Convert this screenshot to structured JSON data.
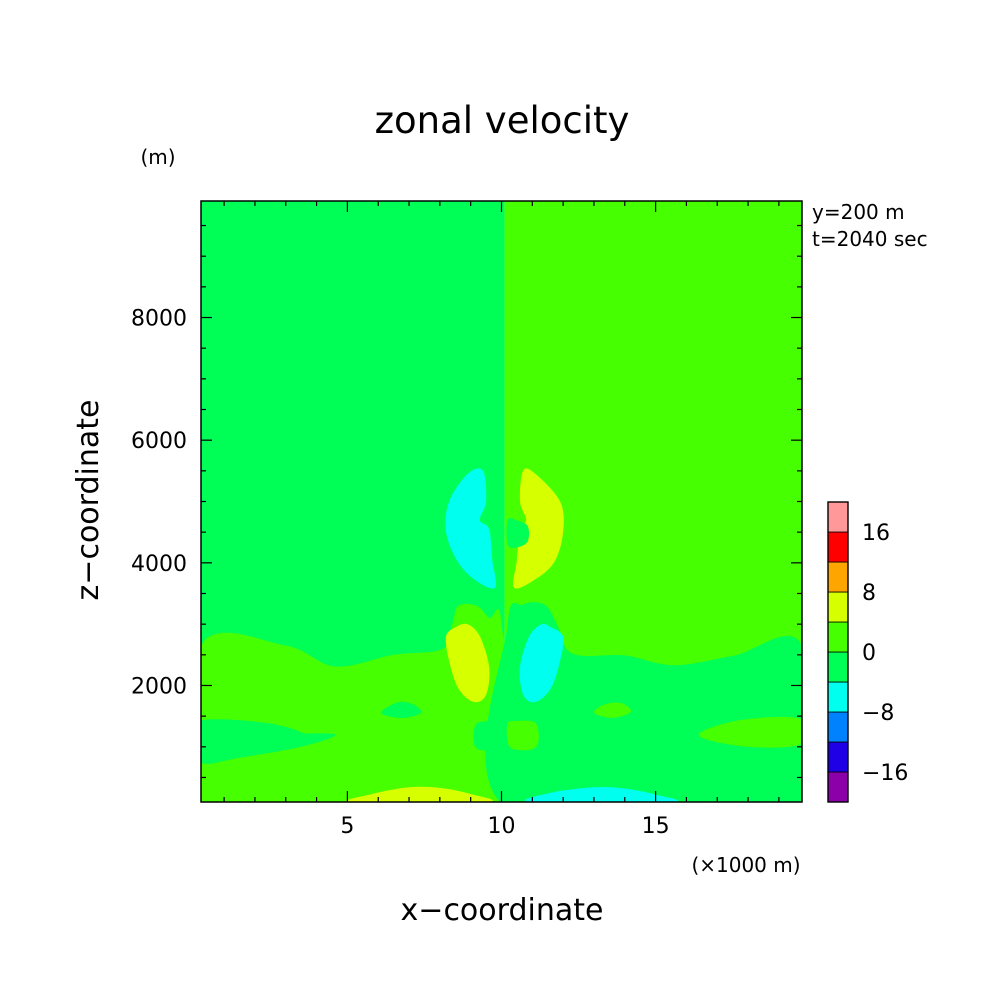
{
  "chart_data": {
    "type": "heatmap",
    "title": "zonal velocity",
    "xlabel": "x−coordinate",
    "ylabel": "z−coordinate",
    "x_unit": "(×1000 m)",
    "y_unit": "(m)",
    "annotations": [
      "y=200 m",
      "t=2040 sec"
    ],
    "xlim": [
      0.25,
      19.75
    ],
    "ylim": [
      100,
      9900
    ],
    "x_ticks": [
      5,
      10,
      15
    ],
    "y_ticks": [
      2000,
      4000,
      6000,
      8000
    ],
    "x_tick_labels": [
      "5",
      "10",
      "15"
    ],
    "y_tick_labels": [
      "2000",
      "4000",
      "6000",
      "8000"
    ],
    "colorbar": {
      "levels": [
        -20,
        -16,
        -12,
        -8,
        -4,
        0,
        4,
        8,
        12,
        16,
        20
      ],
      "tick_labels": [
        "16",
        "8",
        "0",
        "−8",
        "−16"
      ],
      "colors": [
        "#8b00a8",
        "#1f00e6",
        "#0082ff",
        "#00ffee",
        "#00ff56",
        "#46ff00",
        "#d6ff00",
        "#ffa500",
        "#ff0000",
        "#ff9999"
      ]
    },
    "background": {
      "west_value": -2,
      "east_value": 2,
      "west_color": "#00ff56",
      "east_color": "#46ff00"
    },
    "regions": [
      {
        "value": 2,
        "color": "#46ff00",
        "points": [
          [
            0.25,
            2650
          ],
          [
            3,
            2650
          ],
          [
            4.6,
            2310
          ],
          [
            6.5,
            2500
          ],
          [
            8.1,
            2600
          ],
          [
            8.4,
            3000
          ],
          [
            8.6,
            3300
          ],
          [
            9.2,
            3300
          ],
          [
            9.6,
            3100
          ],
          [
            10,
            3000
          ],
          [
            10,
            0
          ],
          [
            0.25,
            0
          ]
        ]
      },
      {
        "value": -2,
        "color": "#00ff56",
        "points": [
          [
            10.2,
            3000
          ],
          [
            10.7,
            3320
          ],
          [
            11.4,
            3320
          ],
          [
            11.8,
            3000
          ],
          [
            12.3,
            2520
          ],
          [
            14,
            2490
          ],
          [
            15.6,
            2330
          ],
          [
            17.5,
            2480
          ],
          [
            19.75,
            2650
          ],
          [
            19.75,
            0
          ],
          [
            10.2,
            0
          ]
        ]
      },
      {
        "value": -2,
        "color": "#00ff56",
        "points": [
          [
            0.25,
            1300
          ],
          [
            2,
            1200
          ],
          [
            4,
            1220
          ],
          [
            4.6,
            1180
          ],
          [
            3.5,
            1000
          ],
          [
            1.5,
            820
          ],
          [
            0.25,
            750
          ]
        ]
      },
      {
        "value": -2,
        "color": "#00ff56",
        "points": [
          [
            0.25,
            1430
          ],
          [
            2.5,
            1380
          ],
          [
            3.7,
            1160
          ],
          [
            2.3,
            1040
          ],
          [
            0.25,
            1080
          ]
        ]
      },
      {
        "value": 2,
        "color": "#46ff00",
        "points": [
          [
            19.75,
            1450
          ],
          [
            17.8,
            1440
          ],
          [
            16.4,
            1190
          ],
          [
            18,
            1000
          ],
          [
            19.75,
            1050
          ]
        ]
      },
      {
        "value": -2,
        "color": "#00ff56",
        "points": [
          [
            6.1,
            1550
          ],
          [
            6.6,
            1720
          ],
          [
            7.1,
            1700
          ],
          [
            7.4,
            1560
          ],
          [
            6.8,
            1470
          ]
        ]
      },
      {
        "value": 2,
        "color": "#46ff00",
        "points": [
          [
            13.0,
            1560
          ],
          [
            13.4,
            1700
          ],
          [
            13.9,
            1710
          ],
          [
            14.2,
            1570
          ],
          [
            13.6,
            1470
          ]
        ]
      },
      {
        "value": -2,
        "color": "#00ff56",
        "points": [
          [
            9.2,
            1380
          ],
          [
            9.1,
            1080
          ],
          [
            9.3,
            950
          ],
          [
            9.9,
            960
          ],
          [
            10.2,
            1080
          ],
          [
            10.2,
            1380
          ],
          [
            9.8,
            1410
          ]
        ]
      },
      {
        "value": 2,
        "color": "#46ff00",
        "points": [
          [
            10.2,
            1380
          ],
          [
            10.2,
            1080
          ],
          [
            10.4,
            960
          ],
          [
            11.0,
            960
          ],
          [
            11.2,
            1100
          ],
          [
            11.1,
            1390
          ],
          [
            10.5,
            1420
          ]
        ]
      },
      {
        "value": 6,
        "color": "#d6ff00",
        "points": [
          [
            5.2,
            100
          ],
          [
            5.8,
            230
          ],
          [
            7.0,
            340
          ],
          [
            8.0,
            330
          ],
          [
            9.0,
            230
          ],
          [
            9.5,
            100
          ]
        ]
      },
      {
        "value": -6,
        "color": "#00ffee",
        "points": [
          [
            11.0,
            100
          ],
          [
            11.6,
            250
          ],
          [
            13.0,
            340
          ],
          [
            14.0,
            320
          ],
          [
            15.0,
            220
          ],
          [
            15.5,
            100
          ]
        ]
      },
      {
        "value": 6,
        "color": "#d6ff00",
        "points": [
          [
            8.5,
            2950
          ],
          [
            8.9,
            3000
          ],
          [
            9.3,
            2800
          ],
          [
            9.6,
            2300
          ],
          [
            9.5,
            1850
          ],
          [
            9.1,
            1730
          ],
          [
            8.6,
            1950
          ],
          [
            8.3,
            2400
          ],
          [
            8.2,
            2800
          ]
        ]
      },
      {
        "value": -6,
        "color": "#00ffee",
        "points": [
          [
            11.6,
            2950
          ],
          [
            11.3,
            3000
          ],
          [
            10.9,
            2800
          ],
          [
            10.6,
            2300
          ],
          [
            10.7,
            1850
          ],
          [
            11.1,
            1730
          ],
          [
            11.6,
            1950
          ],
          [
            11.9,
            2400
          ],
          [
            12.0,
            2800
          ]
        ]
      },
      {
        "value": -6,
        "color": "#00ffee",
        "points": [
          [
            8.9,
            5450
          ],
          [
            9.4,
            5500
          ],
          [
            9.5,
            5000
          ],
          [
            9.3,
            4700
          ],
          [
            9.6,
            4550
          ],
          [
            9.7,
            4050
          ],
          [
            9.8,
            3600
          ],
          [
            9.2,
            3700
          ],
          [
            8.6,
            4000
          ],
          [
            8.2,
            4500
          ],
          [
            8.3,
            5000
          ]
        ]
      },
      {
        "value": 6,
        "color": "#d6ff00",
        "points": [
          [
            11.1,
            5450
          ],
          [
            10.7,
            5500
          ],
          [
            10.6,
            5000
          ],
          [
            10.8,
            4700
          ],
          [
            10.6,
            4550
          ],
          [
            10.5,
            4050
          ],
          [
            10.4,
            3600
          ],
          [
            11.0,
            3700
          ],
          [
            11.7,
            4000
          ],
          [
            12.0,
            4500
          ],
          [
            11.9,
            5000
          ]
        ]
      },
      {
        "value": -2,
        "color": "#00ff56",
        "points": [
          [
            10.2,
            4700
          ],
          [
            10.5,
            4690
          ],
          [
            10.85,
            4600
          ],
          [
            10.85,
            4350
          ],
          [
            10.5,
            4250
          ],
          [
            10.2,
            4300
          ]
        ]
      }
    ]
  }
}
